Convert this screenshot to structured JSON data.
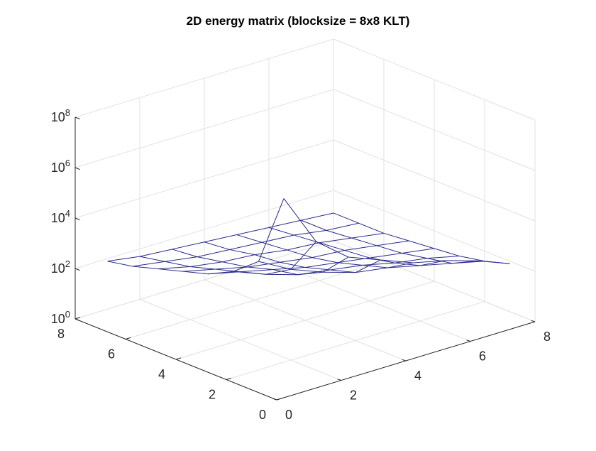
{
  "chart_data": {
    "type": "surface-3d",
    "title": "2D energy matrix (blocksize = 8x8 KLT)",
    "zscale": "log",
    "zlim_exponents": [
      0,
      8
    ],
    "z_ticks": [
      {
        "base": "10",
        "exp": "0"
      },
      {
        "base": "10",
        "exp": "2"
      },
      {
        "base": "10",
        "exp": "4"
      },
      {
        "base": "10",
        "exp": "6"
      },
      {
        "base": "10",
        "exp": "8"
      }
    ],
    "x_ticks": [
      "0",
      "2",
      "4",
      "6",
      "8"
    ],
    "y_ticks": [
      "0",
      "2",
      "4",
      "6",
      "8"
    ],
    "xlim": [
      0,
      8
    ],
    "ylim": [
      0,
      8
    ],
    "grid": true,
    "mesh_color": "#2a2a8c",
    "x": [
      1,
      2,
      3,
      4,
      5,
      6,
      7,
      8
    ],
    "y": [
      1,
      2,
      3,
      4,
      5,
      6,
      7,
      8
    ],
    "log10_z": [
      [
        7.2,
        5.1,
        4.1,
        3.6,
        3.1,
        2.8,
        2.4,
        1.9
      ],
      [
        4.3,
        3.6,
        3.1,
        2.7,
        2.5,
        2.2,
        1.9,
        1.6
      ],
      [
        3.5,
        3.0,
        2.6,
        2.4,
        2.2,
        1.9,
        1.7,
        1.4
      ],
      [
        3.0,
        2.7,
        2.4,
        2.1,
        1.9,
        1.7,
        1.5,
        1.3
      ],
      [
        2.7,
        2.4,
        2.1,
        1.9,
        1.7,
        1.6,
        1.4,
        1.2
      ],
      [
        2.4,
        2.1,
        1.9,
        1.8,
        1.6,
        1.5,
        1.3,
        1.1
      ],
      [
        2.1,
        1.9,
        1.7,
        1.6,
        1.5,
        1.4,
        1.2,
        1.1
      ],
      [
        1.9,
        1.7,
        1.6,
        1.5,
        1.4,
        1.3,
        1.2,
        1.1
      ]
    ]
  }
}
